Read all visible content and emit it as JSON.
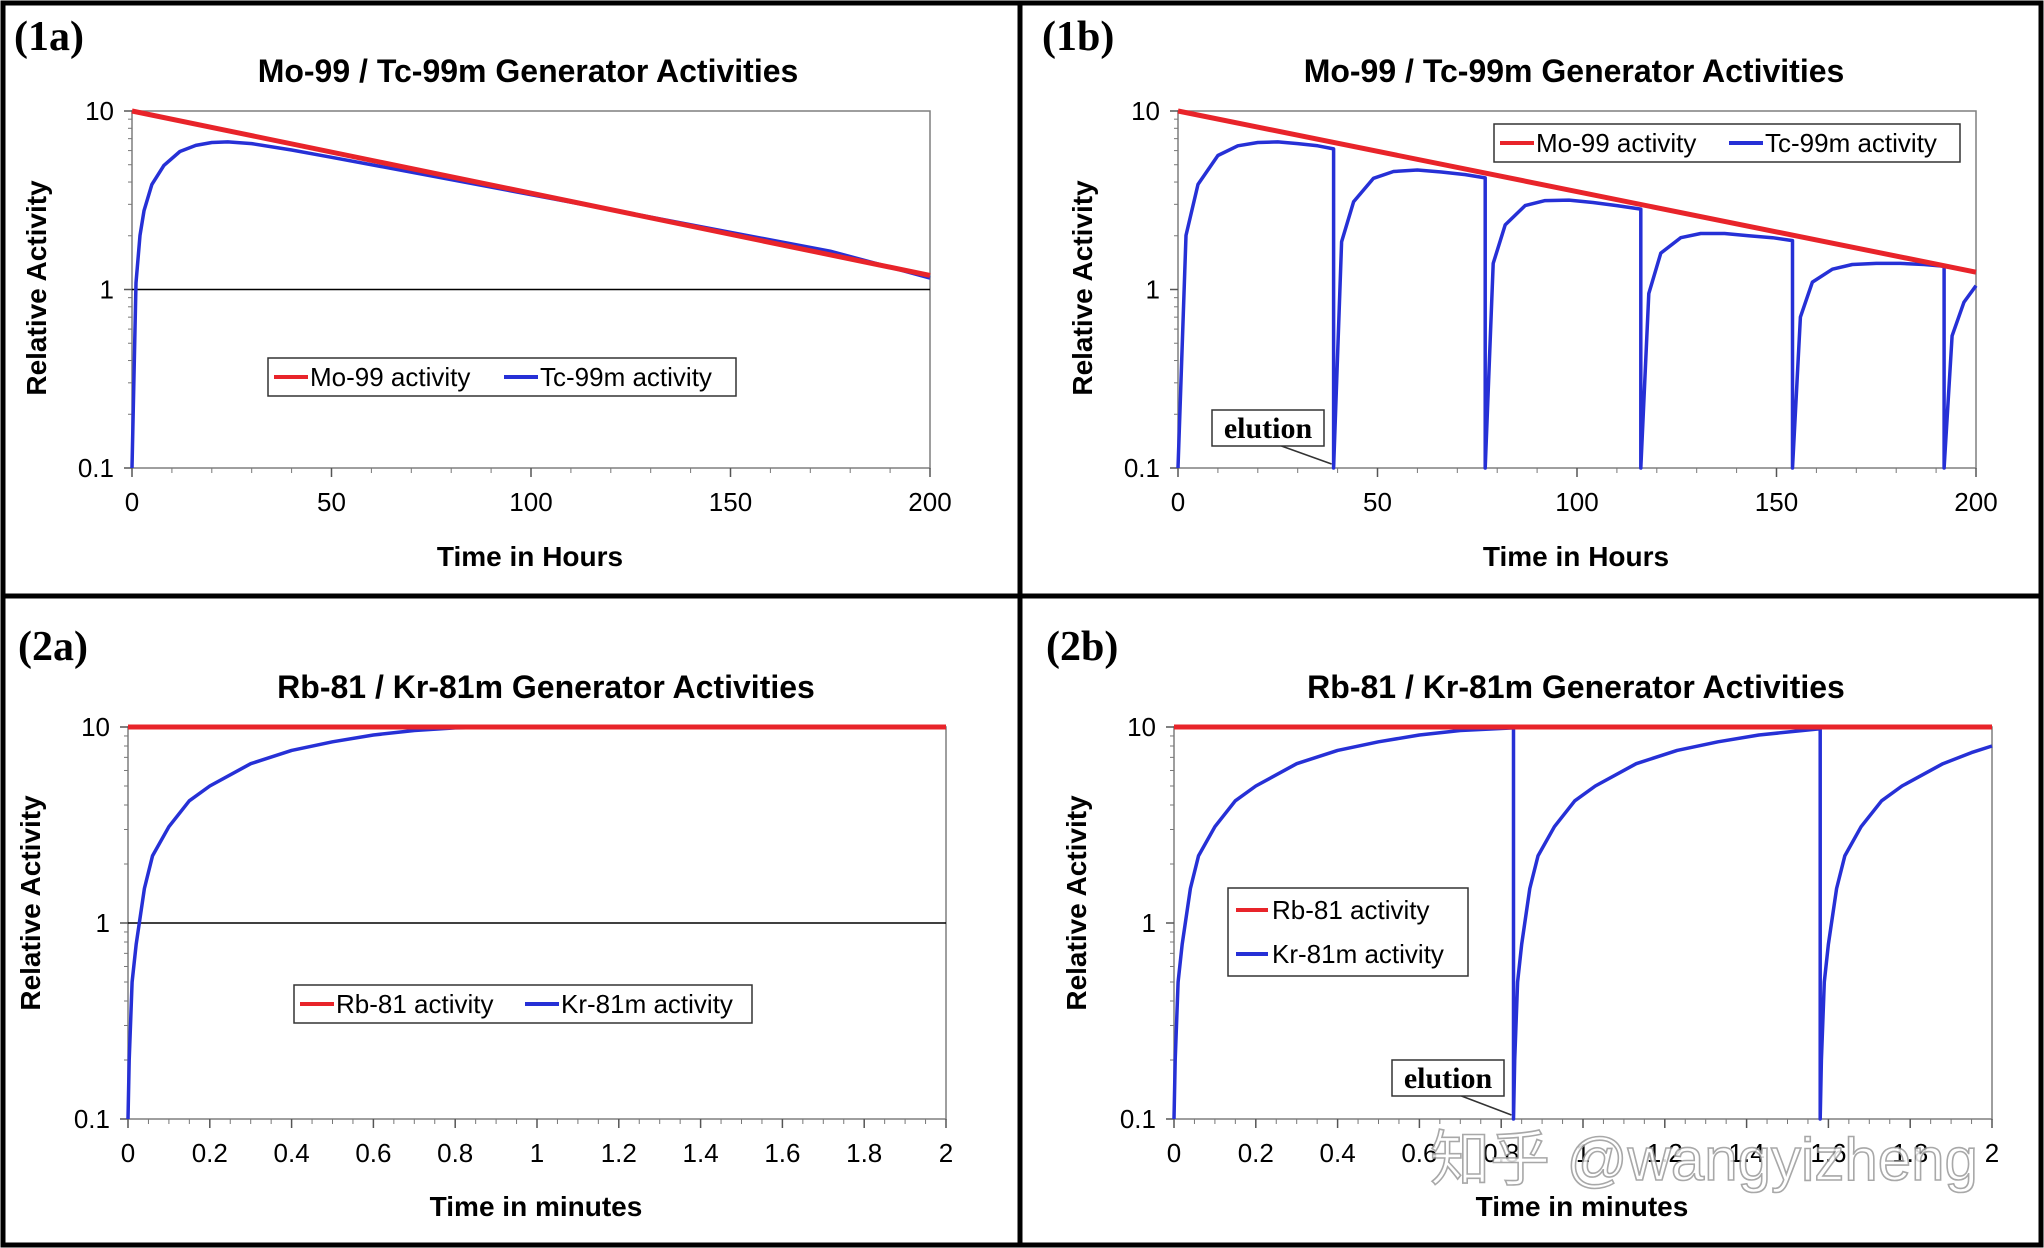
{
  "panels": [
    {
      "tag": "(1a)",
      "legend_style": "horizontal-inside",
      "elution_label": "",
      "chart_data": {
        "type": "line",
        "title": "Mo-99 / Tc-99m Generator Activities",
        "xlabel": "Time in Hours",
        "ylabel": "Relative Activity",
        "xlim": [
          0,
          200
        ],
        "ylim": [
          0.1,
          10
        ],
        "y_scale": "log",
        "x_ticks": [
          "0",
          "50",
          "100",
          "150",
          "200"
        ],
        "y_ticks": [
          "0.1",
          "1",
          "10"
        ],
        "grid": "horizontal line at 1 only",
        "legend_placement": "center",
        "series": [
          {
            "name": "Mo-99 activity",
            "color": "#e8242a",
            "x": [
              0,
              200
            ],
            "y": [
              10,
              1.2
            ]
          },
          {
            "name": "Tc-99m activity",
            "color": "#2630d6",
            "x": [
              0,
              1,
              2,
              3,
              5,
              8,
              12,
              16,
              20,
              24,
              30,
              40,
              50,
              75,
              100,
              125,
              150,
              175,
              200
            ],
            "y": [
              0.1,
              1.09,
              2.01,
              2.76,
              3.88,
              4.96,
              5.93,
              6.42,
              6.66,
              6.71,
              6.57,
              6.05,
              5.5,
              4.33,
              3.4,
              2.67,
              2.09,
              1.64,
              1.16
            ]
          }
        ]
      }
    },
    {
      "tag": "(1b)",
      "legend_style": "horizontal-topright",
      "elution_label": "elution",
      "chart_data": {
        "type": "line",
        "title": "Mo-99 / Tc-99m Generator Activities",
        "xlabel": "Time in Hours",
        "ylabel": "Relative Activity",
        "xlim": [
          0,
          200
        ],
        "ylim": [
          0.1,
          10
        ],
        "y_scale": "log",
        "x_ticks": [
          "0",
          "50",
          "100",
          "150",
          "200"
        ],
        "y_ticks": [
          "0.1",
          "1",
          "10"
        ],
        "grid": "off",
        "legend_placement": "top-right",
        "elution_times": [
          39,
          77,
          116,
          154,
          192
        ],
        "series": [
          {
            "name": "Mo-99 activity",
            "color": "#e8242a",
            "x": [
              0,
              200
            ],
            "y": [
              10,
              1.25
            ]
          },
          {
            "name": "Tc-99m activity",
            "color": "#2630d6",
            "x": [
              0,
              2,
              5,
              10,
              15,
              20,
              25,
              30,
              35,
              39,
              39,
              41,
              44,
              49,
              54,
              60,
              66,
              72,
              77,
              77,
              79,
              82,
              87,
              92,
              98,
              104,
              110,
              116,
              116,
              118,
              121,
              126,
              131,
              137,
              143,
              149,
              154,
              154,
              156,
              159,
              164,
              169,
              175,
              181,
              187,
              192,
              192,
              194,
              197,
              200
            ],
            "y": [
              0.1,
              2.01,
              3.88,
              5.63,
              6.38,
              6.66,
              6.71,
              6.57,
              6.38,
              6.13,
              0.1,
              1.85,
              3.1,
              4.2,
              4.58,
              4.67,
              4.55,
              4.4,
              4.22,
              0.1,
              1.4,
              2.3,
              2.95,
              3.15,
              3.17,
              3.07,
              2.95,
              2.82,
              0.1,
              0.95,
              1.6,
              1.95,
              2.06,
              2.06,
              2.0,
              1.95,
              1.88,
              0.1,
              0.7,
              1.1,
              1.3,
              1.38,
              1.4,
              1.4,
              1.38,
              1.35,
              0.1,
              0.55,
              0.85,
              1.05
            ]
          }
        ]
      }
    },
    {
      "tag": "(2a)",
      "legend_style": "horizontal-inside",
      "elution_label": "",
      "chart_data": {
        "type": "line",
        "title": "Rb-81 /  Kr-81m Generator Activities",
        "xlabel": "Time in minutes",
        "ylabel": "Relative Activity",
        "xlim": [
          0,
          2
        ],
        "ylim": [
          0.1,
          10
        ],
        "y_scale": "log",
        "x_ticks": [
          "0",
          "0.2",
          "0.4",
          "0.6",
          "0.8",
          "1",
          "1.2",
          "1.4",
          "1.6",
          "1.8",
          "2"
        ],
        "y_ticks": [
          "0.1",
          "1",
          "10"
        ],
        "grid": "horizontal line at 1 only",
        "legend_placement": "center-bottom",
        "series": [
          {
            "name": "Rb-81 activity",
            "color": "#e8242a",
            "x": [
              0,
              2
            ],
            "y": [
              10,
              10
            ]
          },
          {
            "name": "Kr-81m activity",
            "color": "#2630d6",
            "x": [
              0,
              0.003,
              0.01,
              0.02,
              0.04,
              0.06,
              0.1,
              0.15,
              0.2,
              0.3,
              0.4,
              0.5,
              0.6,
              0.7,
              0.8,
              1.0,
              1.5,
              2.0
            ],
            "y": [
              0.1,
              0.2,
              0.5,
              0.78,
              1.5,
              2.2,
              3.1,
              4.2,
              5.0,
              6.5,
              7.6,
              8.4,
              9.1,
              9.6,
              9.9,
              10,
              10,
              10
            ]
          }
        ]
      }
    },
    {
      "tag": "(2b)",
      "legend_style": "vertical-left",
      "elution_label": "elution",
      "chart_data": {
        "type": "line",
        "title": "Rb-81 /  Kr-81m Generator Activities",
        "xlabel": "Time in minutes",
        "ylabel": "Relative Activity",
        "xlim": [
          0,
          2
        ],
        "ylim": [
          0.1,
          10
        ],
        "y_scale": "log",
        "x_ticks": [
          "0",
          "0.2",
          "0.4",
          "0.6",
          "0.8",
          "1",
          "1.2",
          "1.4",
          "1.6",
          "1.8",
          "2"
        ],
        "y_ticks": [
          "0.1",
          "1",
          "10"
        ],
        "grid": "off",
        "legend_placement": "left",
        "elution_times": [
          0.83,
          1.58
        ],
        "series": [
          {
            "name": "Rb-81 activity",
            "color": "#e8242a",
            "x": [
              0,
              2
            ],
            "y": [
              10,
              10
            ]
          },
          {
            "name": "Kr-81m activity",
            "color": "#2630d6",
            "x": [
              0,
              0.003,
              0.01,
              0.02,
              0.04,
              0.06,
              0.1,
              0.15,
              0.2,
              0.3,
              0.4,
              0.5,
              0.6,
              0.7,
              0.83,
              0.83,
              0.833,
              0.84,
              0.85,
              0.87,
              0.89,
              0.93,
              0.98,
              1.03,
              1.13,
              1.23,
              1.33,
              1.43,
              1.58,
              1.58,
              1.583,
              1.59,
              1.6,
              1.62,
              1.64,
              1.68,
              1.73,
              1.78,
              1.88,
              1.95,
              2.0
            ],
            "y": [
              0.1,
              0.2,
              0.5,
              0.78,
              1.5,
              2.2,
              3.1,
              4.2,
              5.0,
              6.5,
              7.6,
              8.4,
              9.1,
              9.6,
              9.9,
              0.1,
              0.2,
              0.5,
              0.78,
              1.5,
              2.2,
              3.1,
              4.2,
              5.0,
              6.5,
              7.6,
              8.4,
              9.1,
              9.8,
              0.1,
              0.2,
              0.5,
              0.78,
              1.5,
              2.2,
              3.1,
              4.2,
              5.0,
              6.5,
              7.4,
              8.0
            ]
          }
        ]
      }
    }
  ],
  "watermark": "知乎 @wangyizheng"
}
